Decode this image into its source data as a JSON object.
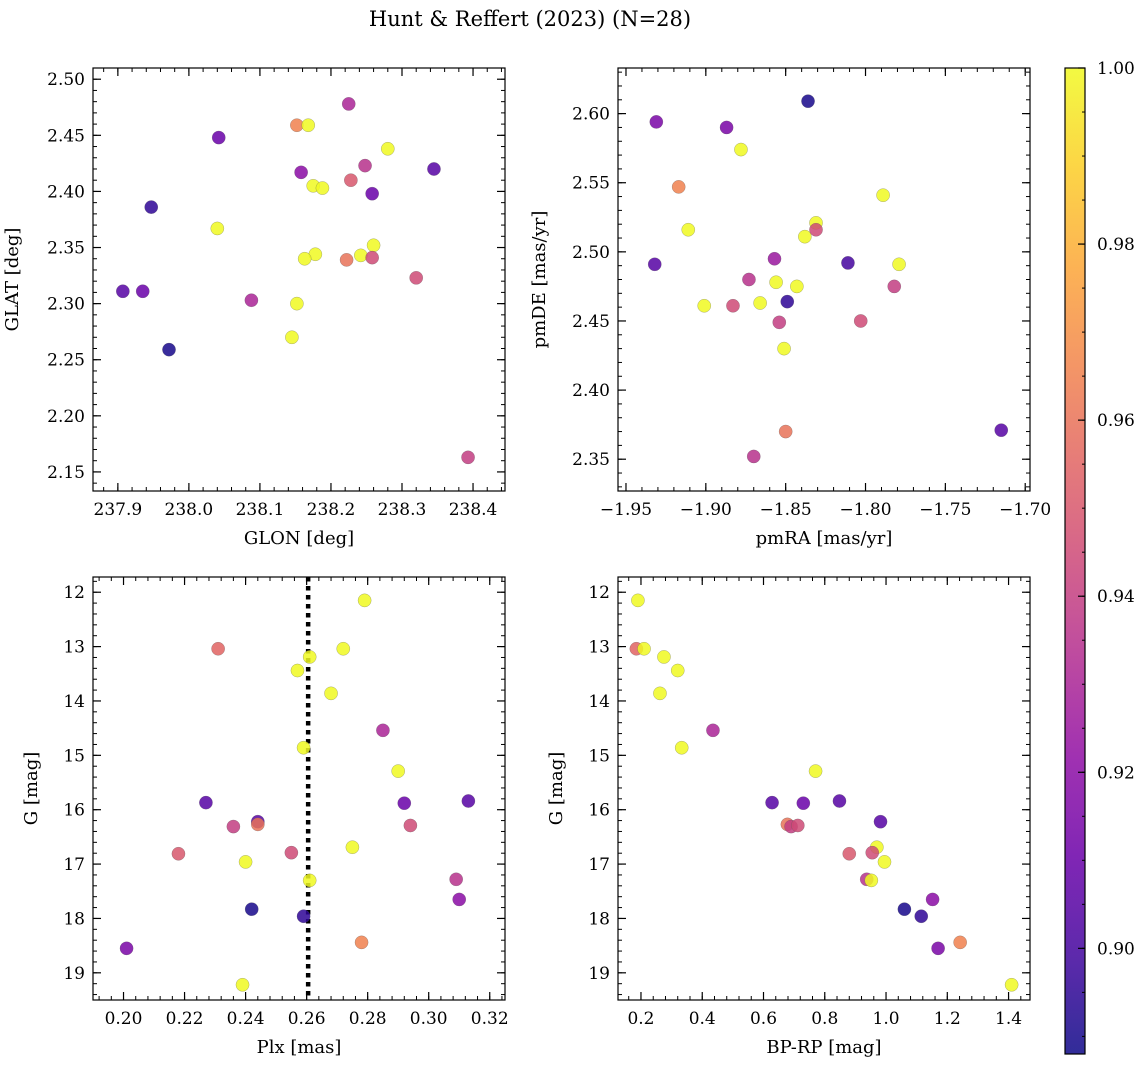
{
  "figure": {
    "title": "Hunt & Reffert (2023) (N=28)"
  },
  "colorbar": {
    "cmap": "plasma",
    "range": [
      0.888,
      1.0
    ],
    "ticks": [
      0.9,
      0.92,
      0.94,
      0.96,
      0.98,
      1.0
    ],
    "tick_labels": [
      "0.90",
      "0.92",
      "0.94",
      "0.96",
      "0.98",
      "1.00"
    ]
  },
  "chart_data": [
    {
      "type": "scatter",
      "xlabel": "GLON [deg]",
      "ylabel": "GLAT [deg]",
      "xlim": [
        237.865,
        238.445
      ],
      "ylim": [
        2.133,
        2.51
      ],
      "xticks": [
        237.9,
        238.0,
        238.1,
        238.2,
        238.3,
        238.4
      ],
      "xtick_labels": [
        "237.9",
        "238.0",
        "238.1",
        "238.2",
        "238.3",
        "238.4"
      ],
      "yticks": [
        2.15,
        2.2,
        2.25,
        2.3,
        2.35,
        2.4,
        2.45,
        2.5
      ],
      "ytick_labels": [
        "2.15",
        "2.20",
        "2.25",
        "2.30",
        "2.35",
        "2.40",
        "2.45",
        "2.50"
      ],
      "points": [
        {
          "x": 238.225,
          "y": 2.478,
          "c": 0.93
        },
        {
          "x": 238.152,
          "y": 2.459,
          "c": 0.965
        },
        {
          "x": 238.168,
          "y": 2.459,
          "c": 1.0
        },
        {
          "x": 238.042,
          "y": 2.448,
          "c": 0.91
        },
        {
          "x": 238.28,
          "y": 2.438,
          "c": 1.0
        },
        {
          "x": 238.248,
          "y": 2.423,
          "c": 0.935
        },
        {
          "x": 238.158,
          "y": 2.417,
          "c": 0.92
        },
        {
          "x": 238.345,
          "y": 2.42,
          "c": 0.905
        },
        {
          "x": 238.228,
          "y": 2.41,
          "c": 0.95
        },
        {
          "x": 238.175,
          "y": 2.405,
          "c": 1.0
        },
        {
          "x": 238.188,
          "y": 2.403,
          "c": 1.0
        },
        {
          "x": 238.258,
          "y": 2.398,
          "c": 0.91
        },
        {
          "x": 237.947,
          "y": 2.386,
          "c": 0.895
        },
        {
          "x": 238.04,
          "y": 2.367,
          "c": 1.0
        },
        {
          "x": 238.26,
          "y": 2.352,
          "c": 1.0
        },
        {
          "x": 238.178,
          "y": 2.344,
          "c": 1.0
        },
        {
          "x": 238.242,
          "y": 2.343,
          "c": 1.0
        },
        {
          "x": 238.163,
          "y": 2.34,
          "c": 1.0
        },
        {
          "x": 238.222,
          "y": 2.339,
          "c": 0.96
        },
        {
          "x": 238.258,
          "y": 2.341,
          "c": 0.945
        },
        {
          "x": 238.32,
          "y": 2.323,
          "c": 0.945
        },
        {
          "x": 237.907,
          "y": 2.311,
          "c": 0.905
        },
        {
          "x": 237.935,
          "y": 2.311,
          "c": 0.91
        },
        {
          "x": 238.088,
          "y": 2.303,
          "c": 0.93
        },
        {
          "x": 238.152,
          "y": 2.3,
          "c": 1.0
        },
        {
          "x": 238.145,
          "y": 2.27,
          "c": 1.0
        },
        {
          "x": 237.972,
          "y": 2.259,
          "c": 0.89
        },
        {
          "x": 238.393,
          "y": 2.163,
          "c": 0.94
        }
      ]
    },
    {
      "type": "scatter",
      "xlabel": "pmRA [mas/yr]",
      "ylabel": "pmDE [mas/yr]",
      "xlim": [
        -1.955,
        -1.697
      ],
      "ylim": [
        2.327,
        2.633
      ],
      "xticks": [
        -1.95,
        -1.9,
        -1.85,
        -1.8,
        -1.75,
        -1.7
      ],
      "xtick_labels": [
        "−1.95",
        "−1.90",
        "−1.85",
        "−1.80",
        "−1.75",
        "−1.70"
      ],
      "yticks": [
        2.35,
        2.4,
        2.45,
        2.5,
        2.55,
        2.6
      ],
      "ytick_labels": [
        "2.35",
        "2.40",
        "2.45",
        "2.50",
        "2.55",
        "2.60"
      ],
      "points": [
        {
          "x": -1.836,
          "y": 2.609,
          "c": 0.89
        },
        {
          "x": -1.931,
          "y": 2.594,
          "c": 0.915
        },
        {
          "x": -1.887,
          "y": 2.59,
          "c": 0.915
        },
        {
          "x": -1.878,
          "y": 2.574,
          "c": 1.0
        },
        {
          "x": -1.917,
          "y": 2.547,
          "c": 0.965
        },
        {
          "x": -1.789,
          "y": 2.541,
          "c": 1.0
        },
        {
          "x": -1.831,
          "y": 2.521,
          "c": 1.0
        },
        {
          "x": -1.831,
          "y": 2.516,
          "c": 0.945
        },
        {
          "x": -1.911,
          "y": 2.516,
          "c": 1.0
        },
        {
          "x": -1.838,
          "y": 2.511,
          "c": 1.0
        },
        {
          "x": -1.857,
          "y": 2.495,
          "c": 0.925
        },
        {
          "x": -1.932,
          "y": 2.491,
          "c": 0.905
        },
        {
          "x": -1.811,
          "y": 2.492,
          "c": 0.9
        },
        {
          "x": -1.779,
          "y": 2.491,
          "c": 1.0
        },
        {
          "x": -1.873,
          "y": 2.48,
          "c": 0.935
        },
        {
          "x": -1.856,
          "y": 2.478,
          "c": 1.0
        },
        {
          "x": -1.843,
          "y": 2.475,
          "c": 1.0
        },
        {
          "x": -1.782,
          "y": 2.475,
          "c": 0.94
        },
        {
          "x": -1.849,
          "y": 2.464,
          "c": 0.895
        },
        {
          "x": -1.901,
          "y": 2.461,
          "c": 1.0
        },
        {
          "x": -1.883,
          "y": 2.461,
          "c": 0.945
        },
        {
          "x": -1.866,
          "y": 2.463,
          "c": 1.0
        },
        {
          "x": -1.854,
          "y": 2.449,
          "c": 0.94
        },
        {
          "x": -1.803,
          "y": 2.45,
          "c": 0.945
        },
        {
          "x": -1.851,
          "y": 2.43,
          "c": 1.0
        },
        {
          "x": -1.85,
          "y": 2.37,
          "c": 0.96
        },
        {
          "x": -1.715,
          "y": 2.371,
          "c": 0.905
        },
        {
          "x": -1.87,
          "y": 2.352,
          "c": 0.935
        }
      ]
    },
    {
      "type": "scatter",
      "xlabel": "Plx [mas]",
      "ylabel": "G [mag]",
      "xlim": [
        0.19,
        0.325
      ],
      "ylim": [
        19.5,
        11.72
      ],
      "y_inverted": true,
      "vline": {
        "x": 0.2605,
        "style": "dotted"
      },
      "xticks": [
        0.2,
        0.22,
        0.24,
        0.26,
        0.28,
        0.3,
        0.32
      ],
      "xtick_labels": [
        "0.20",
        "0.22",
        "0.24",
        "0.26",
        "0.28",
        "0.30",
        "0.32"
      ],
      "yticks": [
        12,
        13,
        14,
        15,
        16,
        17,
        18,
        19
      ],
      "ytick_labels": [
        "12",
        "13",
        "14",
        "15",
        "16",
        "17",
        "18",
        "19"
      ],
      "points": [
        {
          "x": 0.279,
          "y": 12.15,
          "c": 1.0
        },
        {
          "x": 0.231,
          "y": 13.04,
          "c": 0.955
        },
        {
          "x": 0.272,
          "y": 13.04,
          "c": 1.0
        },
        {
          "x": 0.261,
          "y": 13.19,
          "c": 1.0
        },
        {
          "x": 0.257,
          "y": 13.44,
          "c": 1.0
        },
        {
          "x": 0.268,
          "y": 13.86,
          "c": 1.0
        },
        {
          "x": 0.285,
          "y": 14.54,
          "c": 0.93
        },
        {
          "x": 0.259,
          "y": 14.86,
          "c": 1.0
        },
        {
          "x": 0.29,
          "y": 15.29,
          "c": 1.0
        },
        {
          "x": 0.227,
          "y": 15.87,
          "c": 0.905
        },
        {
          "x": 0.313,
          "y": 15.84,
          "c": 0.905
        },
        {
          "x": 0.292,
          "y": 15.88,
          "c": 0.91
        },
        {
          "x": 0.244,
          "y": 16.22,
          "c": 0.905
        },
        {
          "x": 0.244,
          "y": 16.27,
          "c": 0.96
        },
        {
          "x": 0.236,
          "y": 16.31,
          "c": 0.94
        },
        {
          "x": 0.294,
          "y": 16.29,
          "c": 0.945
        },
        {
          "x": 0.275,
          "y": 16.69,
          "c": 1.0
        },
        {
          "x": 0.218,
          "y": 16.81,
          "c": 0.95
        },
        {
          "x": 0.255,
          "y": 16.79,
          "c": 0.945
        },
        {
          "x": 0.24,
          "y": 16.96,
          "c": 1.0
        },
        {
          "x": 0.309,
          "y": 17.28,
          "c": 0.935
        },
        {
          "x": 0.261,
          "y": 17.3,
          "c": 1.0
        },
        {
          "x": 0.31,
          "y": 17.65,
          "c": 0.92
        },
        {
          "x": 0.242,
          "y": 17.83,
          "c": 0.89
        },
        {
          "x": 0.259,
          "y": 17.96,
          "c": 0.895
        },
        {
          "x": 0.278,
          "y": 18.44,
          "c": 0.965
        },
        {
          "x": 0.201,
          "y": 18.55,
          "c": 0.915
        },
        {
          "x": 0.239,
          "y": 19.22,
          "c": 1.0
        }
      ]
    },
    {
      "type": "scatter",
      "xlabel": "BP-RP [mag]",
      "ylabel": "G [mag]",
      "xlim": [
        0.125,
        1.47
      ],
      "ylim": [
        19.5,
        11.72
      ],
      "y_inverted": true,
      "xticks": [
        0.2,
        0.4,
        0.6,
        0.8,
        1.0,
        1.2,
        1.4
      ],
      "xtick_labels": [
        "0.2",
        "0.4",
        "0.6",
        "0.8",
        "1.0",
        "1.2",
        "1.4"
      ],
      "yticks": [
        12,
        13,
        14,
        15,
        16,
        17,
        18,
        19
      ],
      "ytick_labels": [
        "12",
        "13",
        "14",
        "15",
        "16",
        "17",
        "18",
        "19"
      ],
      "points": [
        {
          "x": 0.19,
          "y": 12.15,
          "c": 1.0
        },
        {
          "x": 0.185,
          "y": 13.04,
          "c": 0.955
        },
        {
          "x": 0.21,
          "y": 13.04,
          "c": 1.0
        },
        {
          "x": 0.275,
          "y": 13.19,
          "c": 1.0
        },
        {
          "x": 0.32,
          "y": 13.44,
          "c": 1.0
        },
        {
          "x": 0.262,
          "y": 13.86,
          "c": 1.0
        },
        {
          "x": 0.435,
          "y": 14.54,
          "c": 0.93
        },
        {
          "x": 0.333,
          "y": 14.86,
          "c": 1.0
        },
        {
          "x": 0.77,
          "y": 15.29,
          "c": 1.0
        },
        {
          "x": 0.628,
          "y": 15.87,
          "c": 0.905
        },
        {
          "x": 0.848,
          "y": 15.84,
          "c": 0.905
        },
        {
          "x": 0.73,
          "y": 15.88,
          "c": 0.91
        },
        {
          "x": 0.982,
          "y": 16.22,
          "c": 0.905
        },
        {
          "x": 0.678,
          "y": 16.27,
          "c": 0.96
        },
        {
          "x": 0.69,
          "y": 16.31,
          "c": 0.94
        },
        {
          "x": 0.712,
          "y": 16.29,
          "c": 0.945
        },
        {
          "x": 0.97,
          "y": 16.69,
          "c": 1.0
        },
        {
          "x": 0.88,
          "y": 16.81,
          "c": 0.95
        },
        {
          "x": 0.955,
          "y": 16.79,
          "c": 0.945
        },
        {
          "x": 0.995,
          "y": 16.96,
          "c": 1.0
        },
        {
          "x": 0.937,
          "y": 17.28,
          "c": 0.935
        },
        {
          "x": 0.952,
          "y": 17.3,
          "c": 1.0
        },
        {
          "x": 1.152,
          "y": 17.65,
          "c": 0.92
        },
        {
          "x": 1.06,
          "y": 17.83,
          "c": 0.89
        },
        {
          "x": 1.115,
          "y": 17.96,
          "c": 0.895
        },
        {
          "x": 1.242,
          "y": 18.44,
          "c": 0.965
        },
        {
          "x": 1.17,
          "y": 18.55,
          "c": 0.915
        },
        {
          "x": 1.41,
          "y": 19.22,
          "c": 1.0
        }
      ]
    }
  ]
}
